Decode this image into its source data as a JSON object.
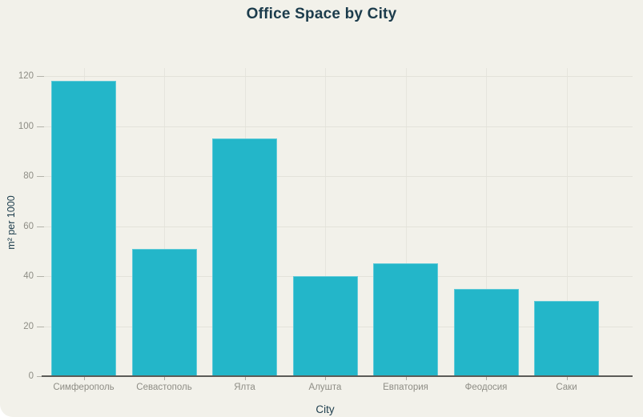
{
  "chart_data": {
    "type": "bar",
    "title": "Office Space by City",
    "xlabel": "City",
    "ylabel": "m² per 1000",
    "categories": [
      "Симферополь",
      "Севастополь",
      "Ялта",
      "Алушта",
      "Евпатория",
      "Феодосия",
      "Саки"
    ],
    "values": [
      118,
      51,
      95,
      40,
      45,
      35,
      30
    ],
    "yticks": [
      0,
      20,
      40,
      60,
      80,
      100,
      120
    ],
    "ylim": [
      0,
      123
    ],
    "grid": true,
    "legend": false,
    "bar_color": "#23b6c9",
    "background_color": "#f2f1ea",
    "title_color": "#1c3c4c",
    "tick_label_color": "#8e8d85"
  }
}
